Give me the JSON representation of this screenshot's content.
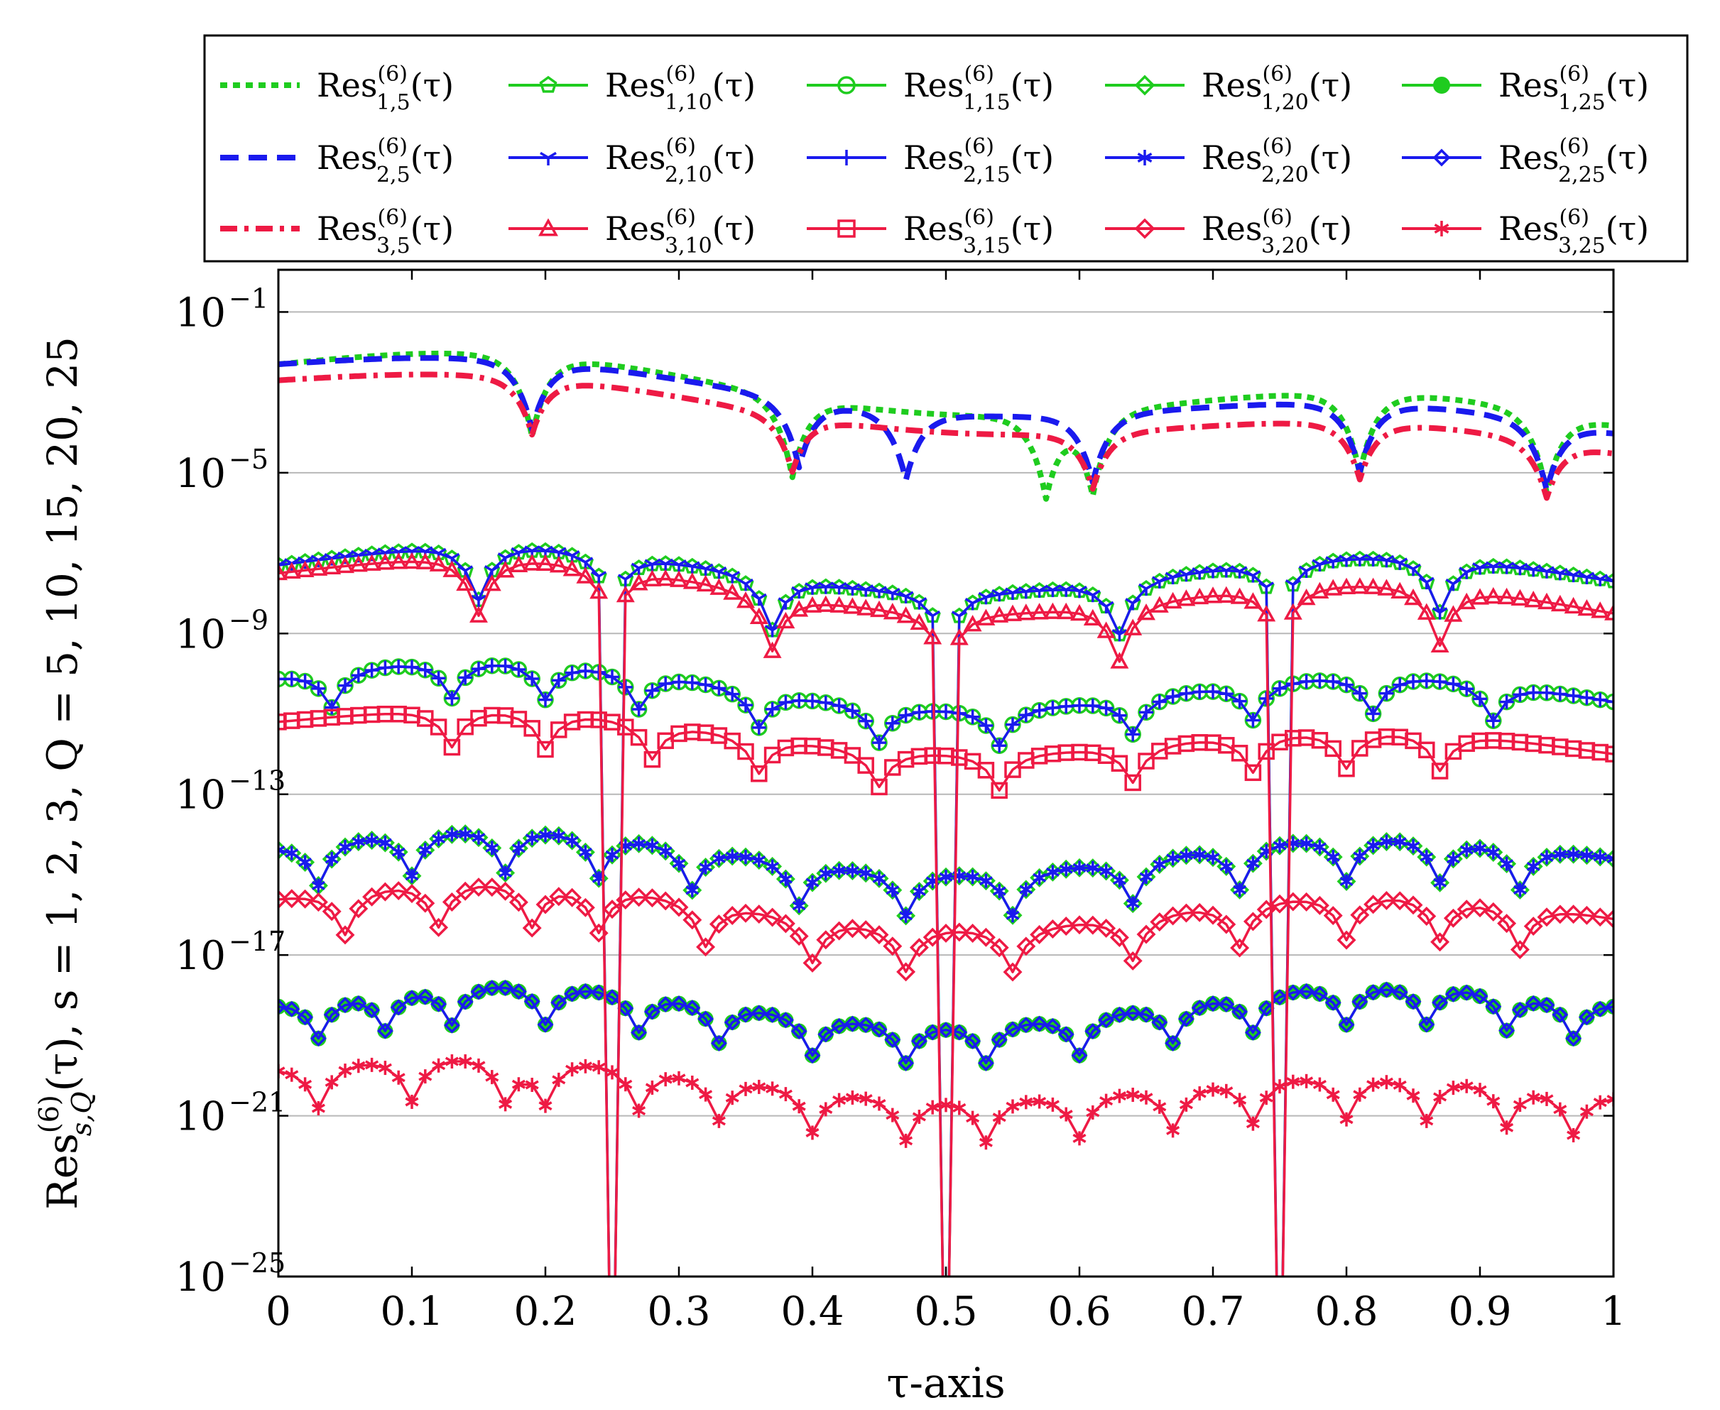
{
  "chart_data": {
    "type": "line",
    "x_scale": "linear",
    "y_scale": "log",
    "xlim": [
      0,
      1
    ],
    "ylim_exponent": [
      -25,
      0
    ],
    "xlabel": "τ-axis",
    "ylabel": {
      "prefix": "Res",
      "sup": "(6)",
      "sub": "s,Q",
      "suffix": "(τ),  s = 1, 2, 3,  Q = 5, 10, 15, 20, 25"
    },
    "x_ticks": [
      {
        "value": 0,
        "label": "0"
      },
      {
        "value": 0.1,
        "label": "0.1"
      },
      {
        "value": 0.2,
        "label": "0.2"
      },
      {
        "value": 0.3,
        "label": "0.3"
      },
      {
        "value": 0.4,
        "label": "0.4"
      },
      {
        "value": 0.5,
        "label": "0.5"
      },
      {
        "value": 0.6,
        "label": "0.6"
      },
      {
        "value": 0.7,
        "label": "0.7"
      },
      {
        "value": 0.8,
        "label": "0.8"
      },
      {
        "value": 0.9,
        "label": "0.9"
      },
      {
        "value": 1,
        "label": "1"
      }
    ],
    "y_ticks": [
      {
        "exp": -1,
        "base": "10",
        "sup": "−1"
      },
      {
        "exp": -5,
        "base": "10",
        "sup": "−5"
      },
      {
        "exp": -9,
        "base": "10",
        "sup": "−9"
      },
      {
        "exp": -13,
        "base": "10",
        "sup": "−13"
      },
      {
        "exp": -17,
        "base": "10",
        "sup": "−17"
      },
      {
        "exp": -21,
        "base": "10",
        "sup": "−21"
      },
      {
        "exp": -25,
        "base": "10",
        "sup": "−25"
      }
    ],
    "grid": "horizontal",
    "legend_position": "top, outside",
    "colors": {
      "s1": "#1fcc1f",
      "s2": "#1a1aee",
      "s3": "#ee1a44"
    },
    "series": [
      {
        "name": "Res(6)_{1,5}(τ)",
        "label_base": "Res",
        "label_sup": "(6)",
        "label_sub": "1,5",
        "label_tail": "(τ)",
        "s": 1,
        "Q": 5,
        "style": "dotted",
        "marker": "none",
        "base_exp": -2.3,
        "trend": -1.5,
        "ripple": 0.5,
        "zeros": [
          0.19,
          0.385,
          0.575,
          0.61,
          0.81,
          0.95
        ],
        "depth": 2.0
      },
      {
        "name": "Res(6)_{1,10}(τ)",
        "label_base": "Res",
        "label_sup": "(6)",
        "label_sub": "1,10",
        "label_tail": "(τ)",
        "s": 1,
        "Q": 10,
        "style": "solid",
        "marker": "pentagon",
        "base_exp": -7.3,
        "trend": -0.4,
        "ripple": 0.5,
        "zeros": [
          0.15,
          0.25,
          0.37,
          0.5,
          0.63,
          0.75,
          0.87
        ],
        "depth": 1.3,
        "dive": [
          0.25,
          0.5,
          0.75
        ]
      },
      {
        "name": "Res(6)_{1,15}(τ)",
        "label_base": "Res",
        "label_sup": "(6)",
        "label_sub": "1,15",
        "label_tail": "(τ)",
        "s": 1,
        "Q": 15,
        "style": "solid",
        "marker": "circle",
        "base_exp": -10.1,
        "trend": -0.6,
        "ripple": 0.5,
        "zeros": [
          0.04,
          0.13,
          0.2,
          0.27,
          0.36,
          0.45,
          0.54,
          0.64,
          0.73,
          0.82,
          0.91
        ],
        "depth": 0.9
      },
      {
        "name": "Res(6)_{1,20}(τ)",
        "label_base": "Res",
        "label_sup": "(6)",
        "label_sub": "1,20",
        "label_tail": "(τ)",
        "s": 1,
        "Q": 20,
        "style": "solid",
        "marker": "diamond",
        "base_exp": -14.3,
        "trend": -0.3,
        "ripple": 0.5,
        "zeros": [
          0.03,
          0.1,
          0.17,
          0.24,
          0.31,
          0.39,
          0.47,
          0.55,
          0.64,
          0.72,
          0.8,
          0.87,
          0.93
        ],
        "depth": 1.1
      },
      {
        "name": "Res(6)_{1,25}(τ)",
        "label_base": "Res",
        "label_sup": "(6)",
        "label_sub": "1,25",
        "label_tail": "(τ)",
        "s": 1,
        "Q": 25,
        "style": "solid",
        "marker": "heart",
        "base_exp": -18.2,
        "trend": 0.0,
        "ripple": 0.5,
        "zeros": [
          0.03,
          0.08,
          0.13,
          0.2,
          0.27,
          0.33,
          0.4,
          0.47,
          0.53,
          0.6,
          0.67,
          0.73,
          0.8,
          0.86,
          0.92,
          0.97
        ],
        "depth": 1.0
      },
      {
        "name": "Res(6)_{2,5}(τ)",
        "label_base": "Res",
        "label_sup": "(6)",
        "label_sub": "2,5",
        "label_tail": "(τ)",
        "s": 2,
        "Q": 5,
        "style": "dashed",
        "marker": "none",
        "base_exp": -2.3,
        "trend": -1.7,
        "ripple": 0.4,
        "zeros": [
          0.19,
          0.39,
          0.47,
          0.61,
          0.81,
          0.95
        ],
        "depth": 1.7
      },
      {
        "name": "Res(6)_{2,10}(τ)",
        "label_base": "Res",
        "label_sup": "(6)",
        "label_sub": "2,10",
        "label_tail": "(τ)",
        "s": 2,
        "Q": 10,
        "style": "solid",
        "marker": "tri",
        "base_exp": -7.3,
        "trend": -0.4,
        "ripple": 0.5,
        "zeros": [
          0.15,
          0.25,
          0.37,
          0.5,
          0.63,
          0.75,
          0.87
        ],
        "depth": 1.3,
        "dive": [
          0.25,
          0.5,
          0.75
        ]
      },
      {
        "name": "Res(6)_{2,15}(τ)",
        "label_base": "Res",
        "label_sup": "(6)",
        "label_sub": "2,15",
        "label_tail": "(τ)",
        "s": 2,
        "Q": 15,
        "style": "solid",
        "marker": "plus",
        "base_exp": -10.1,
        "trend": -0.6,
        "ripple": 0.5,
        "zeros": [
          0.04,
          0.13,
          0.2,
          0.27,
          0.36,
          0.45,
          0.54,
          0.64,
          0.73,
          0.82,
          0.91
        ],
        "depth": 0.9
      },
      {
        "name": "Res(6)_{2,20}(τ)",
        "label_base": "Res",
        "label_sup": "(6)",
        "label_sub": "2,20",
        "label_tail": "(τ)",
        "s": 2,
        "Q": 20,
        "style": "solid",
        "marker": "asterisk",
        "base_exp": -14.3,
        "trend": -0.3,
        "ripple": 0.5,
        "zeros": [
          0.03,
          0.1,
          0.17,
          0.24,
          0.31,
          0.39,
          0.47,
          0.55,
          0.64,
          0.72,
          0.8,
          0.87,
          0.93
        ],
        "depth": 1.1
      },
      {
        "name": "Res(6)_{2,25}(τ)",
        "label_base": "Res",
        "label_sup": "(6)",
        "label_sub": "2,25",
        "label_tail": "(τ)",
        "s": 2,
        "Q": 25,
        "style": "solid",
        "marker": "diamond-small",
        "base_exp": -18.2,
        "trend": 0.0,
        "ripple": 0.5,
        "zeros": [
          0.03,
          0.08,
          0.13,
          0.2,
          0.27,
          0.33,
          0.4,
          0.47,
          0.53,
          0.6,
          0.67,
          0.73,
          0.8,
          0.86,
          0.92,
          0.97
        ],
        "depth": 1.0
      },
      {
        "name": "Res(6)_{3,5}(τ)",
        "label_base": "Res",
        "label_sup": "(6)",
        "label_sub": "3,5",
        "label_tail": "(τ)",
        "s": 3,
        "Q": 5,
        "style": "dashdot",
        "marker": "none",
        "base_exp": -2.7,
        "trend": -1.8,
        "ripple": 0.4,
        "zeros": [
          0.19,
          0.385,
          0.61,
          0.81,
          0.95
        ],
        "depth": 1.4
      },
      {
        "name": "Res(6)_{3,10}(τ)",
        "label_base": "Res",
        "label_sup": "(6)",
        "label_sub": "3,10",
        "label_tail": "(τ)",
        "s": 3,
        "Q": 10,
        "style": "solid",
        "marker": "triangle",
        "base_exp": -7.5,
        "trend": -1.0,
        "ripple": 0.5,
        "zeros": [
          0.15,
          0.25,
          0.37,
          0.5,
          0.63,
          0.75,
          0.87
        ],
        "depth": 1.4,
        "dive": [
          0.25,
          0.5,
          0.75
        ]
      },
      {
        "name": "Res(6)_{3,15}(τ)",
        "label_base": "Res",
        "label_sup": "(6)",
        "label_sub": "3,15",
        "label_tail": "(τ)",
        "s": 3,
        "Q": 15,
        "style": "solid",
        "marker": "square",
        "base_exp": -11.2,
        "trend": -0.8,
        "ripple": 0.4,
        "zeros": [
          0.13,
          0.2,
          0.28,
          0.36,
          0.45,
          0.54,
          0.64,
          0.73,
          0.8,
          0.87
        ],
        "depth": 0.9
      },
      {
        "name": "Res(6)_{3,20}(τ)",
        "label_base": "Res",
        "label_sup": "(6)",
        "label_sub": "3,20",
        "label_tail": "(τ)",
        "s": 3,
        "Q": 20,
        "style": "solid",
        "marker": "diamond",
        "base_exp": -15.6,
        "trend": -0.5,
        "ripple": 0.5,
        "zeros": [
          0.05,
          0.12,
          0.19,
          0.24,
          0.32,
          0.4,
          0.47,
          0.55,
          0.64,
          0.72,
          0.8,
          0.87,
          0.93
        ],
        "depth": 1.1
      },
      {
        "name": "Res(6)_{3,25}(τ)",
        "label_base": "Res",
        "label_sup": "(6)",
        "label_sub": "3,25",
        "label_tail": "(τ)",
        "s": 3,
        "Q": 25,
        "style": "solid",
        "marker": "star",
        "base_exp": -19.8,
        "trend": -0.7,
        "ripple": 0.4,
        "zeros": [
          0.03,
          0.1,
          0.17,
          0.2,
          0.27,
          0.33,
          0.4,
          0.47,
          0.53,
          0.6,
          0.67,
          0.73,
          0.8,
          0.86,
          0.92,
          0.97
        ],
        "depth": 1.1
      }
    ]
  }
}
